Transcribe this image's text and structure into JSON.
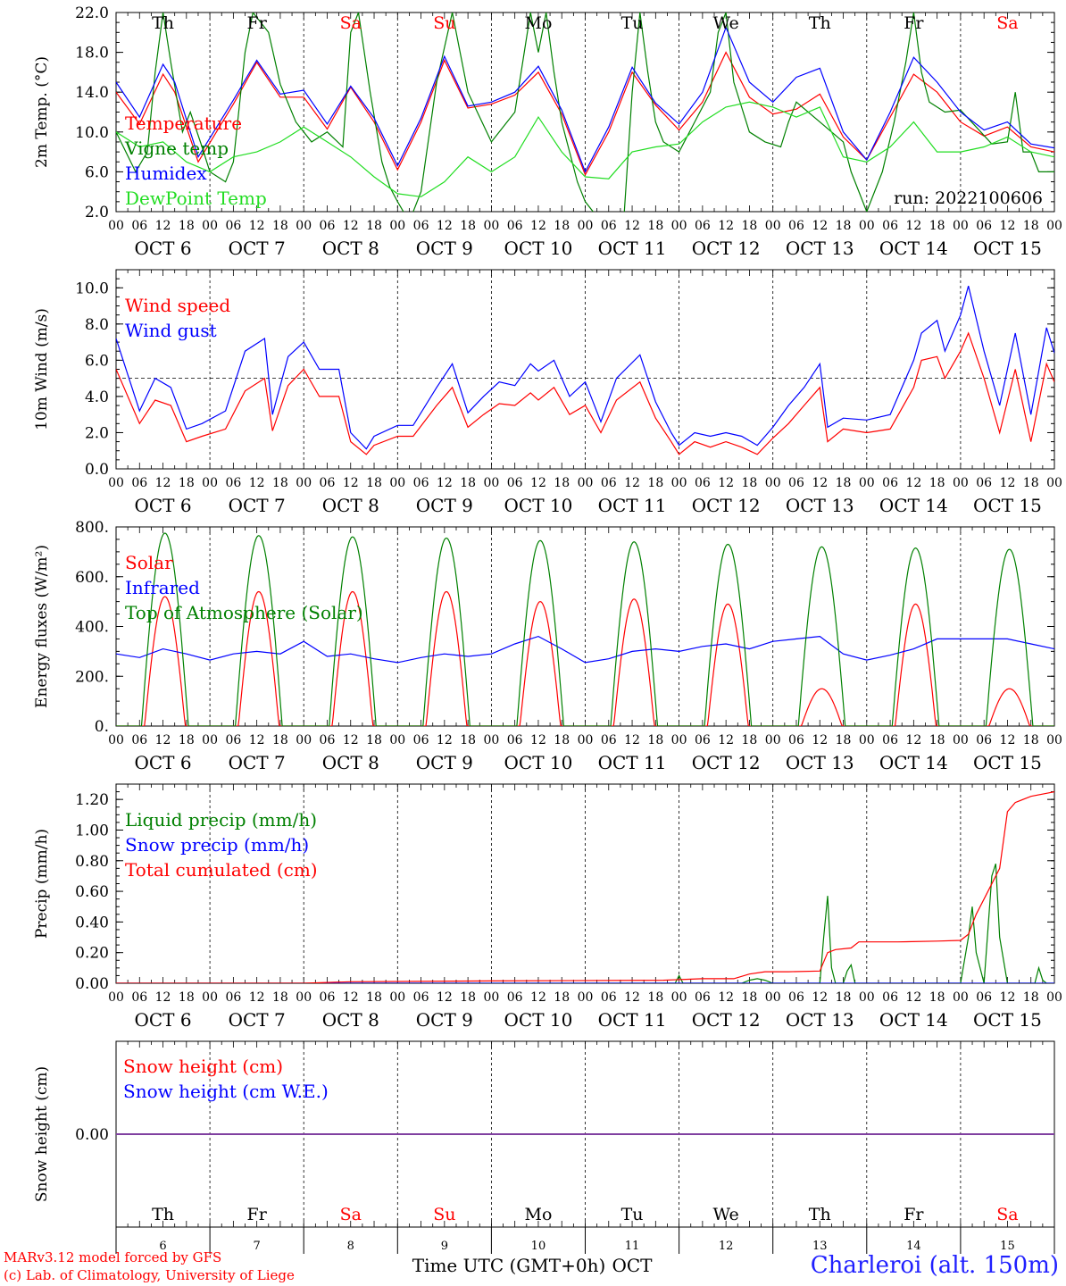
{
  "days": [
    "OCT  6",
    "OCT  7",
    "OCT  8",
    "OCT  9",
    "OCT 10",
    "OCT 11",
    "OCT 12",
    "OCT 13",
    "OCT 14",
    "OCT 15"
  ],
  "day_numbers": [
    "6",
    "7",
    "8",
    "9",
    "10",
    "11",
    "12",
    "13",
    "14",
    "15"
  ],
  "weekdays": [
    "Th",
    "Fr",
    "Sa",
    "Su",
    "Mo",
    "Tu",
    "We",
    "Th",
    "Fr",
    "Sa"
  ],
  "weekend": [
    false,
    false,
    true,
    true,
    false,
    false,
    false,
    false,
    false,
    true
  ],
  "hour_ticks": [
    "00",
    "06",
    "12",
    "18"
  ],
  "final_tick": "00",
  "colors": {
    "red": "#ff0000",
    "green": "#008000",
    "blue": "#0000ff",
    "lightgreen": "#22dd22",
    "purple": "#8040a0"
  },
  "footer": {
    "model": "MARv3.12 model forced by GFS",
    "lab": "(c) Lab. of Climatology, University of Liege",
    "xlabel": "Time UTC (GMT+0h)",
    "month": "OCT",
    "station": "Charleroi (alt. 150m)"
  },
  "chart_data": [
    {
      "type": "line",
      "ylabel": "2m Temp. (°C)",
      "ylim": [
        2,
        22
      ],
      "yticks": [
        "22.0",
        "18.0",
        "14.0",
        "10.0",
        "6.0",
        "2.0"
      ],
      "run_label": "run: 2022100606",
      "x_unit": "hours since 2022-10-06 00 UTC",
      "series": [
        {
          "name": "Temperature",
          "color": "red",
          "x": [
            0,
            6,
            12,
            15,
            21,
            30,
            36,
            42,
            48,
            54,
            60,
            66,
            72,
            78,
            84,
            90,
            96,
            102,
            108,
            114,
            120,
            126,
            132,
            138,
            144,
            150,
            156,
            162,
            168,
            174,
            180,
            186,
            192,
            198,
            204,
            210,
            216,
            222,
            228,
            234,
            240
          ],
          "y": [
            14,
            10.8,
            15.8,
            14,
            7,
            12.8,
            17,
            13.5,
            13.5,
            10.3,
            14.5,
            11,
            6.2,
            11,
            17.2,
            12.4,
            12.8,
            13.7,
            16,
            11.8,
            5.7,
            10,
            16,
            12.7,
            10.2,
            13,
            18,
            13.5,
            11.8,
            12.3,
            13.8,
            9.5,
            7.2,
            11.5,
            15.8,
            14,
            11,
            9.6,
            10.5,
            8.5,
            8
          ]
        },
        {
          "name": "Vigne temp",
          "color": "green",
          "x": [
            0,
            5,
            8,
            10,
            12,
            14,
            17,
            19,
            22,
            24,
            28,
            30,
            33,
            35,
            39,
            42,
            46,
            50,
            54,
            58,
            60,
            62,
            65,
            68,
            70,
            72,
            75,
            78,
            82,
            86,
            90,
            96,
            102,
            106,
            108,
            110,
            112,
            114,
            118,
            120,
            125,
            130,
            132,
            134,
            136,
            138,
            140,
            144,
            148,
            152,
            154,
            156,
            158,
            162,
            166,
            170,
            172,
            174,
            180,
            186,
            188,
            192,
            196,
            199,
            202,
            204,
            206,
            208,
            212,
            216,
            220,
            224,
            228,
            230,
            232,
            234,
            236,
            240
          ],
          "y": [
            10,
            6,
            8,
            16,
            22,
            17,
            10,
            12,
            8.5,
            6,
            5,
            7,
            18,
            22,
            20,
            14.8,
            11,
            9,
            10,
            8.5,
            20,
            22,
            14,
            7,
            4.5,
            3,
            1,
            4,
            15,
            22,
            14,
            9,
            12,
            22,
            18,
            22,
            16,
            11,
            5,
            3,
            0.5,
            2,
            14,
            22,
            16,
            11,
            9,
            8,
            11,
            14,
            20,
            22,
            15,
            10,
            9,
            8.5,
            11,
            13,
            11,
            9,
            6,
            2,
            6,
            11,
            17,
            22,
            16,
            13,
            12,
            12.2,
            10.5,
            8.8,
            9,
            14,
            8,
            8,
            6,
            6
          ]
        },
        {
          "name": "Humidex",
          "color": "blue",
          "x": [
            0,
            6,
            12,
            15,
            21,
            30,
            36,
            42,
            48,
            54,
            60,
            66,
            72,
            78,
            84,
            90,
            96,
            102,
            108,
            114,
            120,
            126,
            132,
            138,
            144,
            150,
            156,
            162,
            168,
            174,
            180,
            186,
            192,
            198,
            204,
            210,
            216,
            222,
            228,
            234,
            240
          ],
          "y": [
            15,
            11.5,
            16.8,
            15,
            7.5,
            13.2,
            17.2,
            13.8,
            14.2,
            10.8,
            14.6,
            11.4,
            6.6,
            11.4,
            17.6,
            12.6,
            13,
            14,
            16.6,
            12.2,
            6,
            10.5,
            16.5,
            12.9,
            10.8,
            14,
            20.5,
            15,
            13,
            15.5,
            16.4,
            10,
            7.2,
            12,
            17.5,
            15,
            12,
            10.2,
            11,
            8.8,
            8.4
          ]
        },
        {
          "name": "DewPoint Temp",
          "color": "lightgreen",
          "x": [
            0,
            6,
            12,
            18,
            24,
            30,
            36,
            42,
            48,
            54,
            60,
            66,
            72,
            78,
            84,
            90,
            96,
            102,
            108,
            114,
            120,
            126,
            132,
            138,
            144,
            150,
            156,
            162,
            168,
            174,
            180,
            186,
            192,
            198,
            204,
            210,
            216,
            222,
            228,
            234,
            240
          ],
          "y": [
            10,
            8.5,
            9,
            7,
            6,
            7.5,
            8,
            9,
            10.5,
            9,
            7.5,
            5.5,
            3.8,
            3.5,
            5,
            7.5,
            6,
            7.5,
            11.5,
            8,
            5.5,
            5.3,
            8,
            8.5,
            8.8,
            11,
            12.5,
            13,
            12.5,
            11.5,
            12.5,
            7.5,
            7,
            8.5,
            11,
            8,
            8,
            8.5,
            9.5,
            8,
            7.5
          ]
        }
      ]
    },
    {
      "type": "line",
      "ylabel": "10m Wind (m/s)",
      "ylim": [
        0,
        11
      ],
      "yticks": [
        "10.0",
        "8.0",
        "6.0",
        "4.0",
        "2.0",
        "0.0"
      ],
      "ref_line": 5,
      "x_unit": "hours since 2022-10-06 00 UTC",
      "series": [
        {
          "name": "Wind speed",
          "color": "red",
          "x": [
            0,
            6,
            10,
            14,
            18,
            22,
            28,
            33,
            38,
            40,
            44,
            48,
            52,
            57,
            60,
            64,
            66,
            72,
            76,
            82,
            86,
            90,
            94,
            98,
            102,
            106,
            108,
            112,
            116,
            120,
            124,
            128,
            134,
            138,
            142,
            144,
            148,
            152,
            156,
            160,
            164,
            168,
            172,
            176,
            180,
            182,
            186,
            192,
            198,
            204,
            206,
            210,
            212,
            216,
            218,
            222,
            226,
            230,
            234,
            238,
            240
          ],
          "y": [
            5.5,
            2.5,
            3.8,
            3.5,
            1.5,
            1.8,
            2.2,
            4.3,
            5,
            2.1,
            4.6,
            5.5,
            4,
            4,
            1.5,
            0.8,
            1.3,
            1.8,
            1.8,
            3.5,
            4.5,
            2.3,
            3,
            3.6,
            3.5,
            4.2,
            3.8,
            4.5,
            3,
            3.5,
            2,
            3.8,
            4.8,
            2.8,
            1.5,
            0.8,
            1.5,
            1.2,
            1.5,
            1.2,
            0.8,
            1.7,
            2.5,
            3.5,
            4.5,
            1.5,
            2.2,
            2,
            2.2,
            4.5,
            6,
            6.2,
            5,
            6.5,
            7.5,
            5,
            2,
            5.5,
            1.5,
            5.8,
            4.8
          ]
        },
        {
          "name": "Wind gust",
          "color": "blue",
          "x": [
            0,
            6,
            10,
            14,
            18,
            22,
            28,
            33,
            38,
            40,
            44,
            48,
            52,
            57,
            60,
            64,
            66,
            72,
            76,
            82,
            86,
            90,
            94,
            98,
            102,
            106,
            108,
            112,
            116,
            120,
            124,
            128,
            134,
            138,
            142,
            144,
            148,
            152,
            156,
            160,
            164,
            168,
            172,
            176,
            180,
            182,
            186,
            192,
            198,
            204,
            206,
            210,
            212,
            216,
            218,
            222,
            226,
            230,
            234,
            238,
            240
          ],
          "y": [
            7.2,
            3.2,
            5,
            4.5,
            2.2,
            2.5,
            3.2,
            6.5,
            7.2,
            3,
            6.2,
            7,
            5.5,
            5.5,
            2,
            1.1,
            1.8,
            2.4,
            2.4,
            4.5,
            5.8,
            3.1,
            4,
            4.8,
            4.6,
            5.8,
            5.4,
            6,
            4,
            4.8,
            2.6,
            5,
            6.3,
            3.7,
            2,
            1.3,
            2,
            1.8,
            2,
            1.8,
            1.3,
            2.3,
            3.5,
            4.5,
            5.8,
            2.3,
            2.8,
            2.7,
            3,
            6,
            7.5,
            8.2,
            6.5,
            8.5,
            10.1,
            6.5,
            3.5,
            7.5,
            3,
            7.8,
            6.4
          ]
        }
      ]
    },
    {
      "type": "line",
      "ylabel": "Energy fluxes (W/m²)",
      "ylim": [
        0,
        800
      ],
      "yticks": [
        "800.",
        "600.",
        "400.",
        "200.",
        "0."
      ],
      "x_unit": "hours since 2022-10-06 00 UTC",
      "solar_peaks": [
        520,
        540,
        540,
        540,
        500,
        510,
        490,
        150,
        490,
        150
      ],
      "toa_peaks": [
        775,
        765,
        760,
        755,
        745,
        740,
        730,
        720,
        715,
        710
      ],
      "series": [
        {
          "name": "Solar",
          "color": "red"
        },
        {
          "name": "Infrared",
          "color": "blue",
          "x": [
            0,
            6,
            12,
            18,
            24,
            30,
            36,
            42,
            48,
            54,
            60,
            66,
            72,
            78,
            84,
            90,
            96,
            102,
            108,
            114,
            120,
            126,
            132,
            138,
            144,
            150,
            156,
            162,
            168,
            174,
            180,
            186,
            192,
            198,
            204,
            210,
            216,
            222,
            228,
            234,
            240
          ],
          "y": [
            290,
            275,
            310,
            290,
            265,
            290,
            300,
            290,
            340,
            280,
            290,
            270,
            255,
            275,
            290,
            280,
            290,
            330,
            360,
            310,
            255,
            270,
            300,
            310,
            300,
            320,
            330,
            310,
            340,
            350,
            360,
            290,
            265,
            285,
            310,
            350,
            350,
            350,
            350,
            330,
            310
          ]
        },
        {
          "name": "Top of Atmosphere (Solar)",
          "color": "green"
        }
      ]
    },
    {
      "type": "line",
      "ylabel": "Precip (mm/h)",
      "ylim": [
        0,
        1.3
      ],
      "yticks": [
        "1.20",
        "1.00",
        "0.80",
        "0.60",
        "0.40",
        "0.20",
        "0.00"
      ],
      "x_unit": "hours since 2022-10-06 00 UTC",
      "series": [
        {
          "name": "Liquid precip (mm/h)",
          "color": "green",
          "x": [
            0,
            143,
            144,
            145,
            160,
            162,
            164,
            166,
            168,
            180,
            181,
            182,
            183,
            184,
            186,
            187,
            188,
            189,
            190,
            200,
            216,
            218,
            219,
            220,
            222,
            224,
            225,
            226,
            228,
            232,
            235,
            236,
            237,
            238,
            240
          ],
          "y": [
            0,
            0,
            0.05,
            0,
            0,
            0.02,
            0.03,
            0.02,
            0,
            0,
            0.3,
            0.57,
            0.1,
            0,
            0,
            0.08,
            0.12,
            0,
            0,
            0,
            0,
            0.3,
            0.5,
            0.2,
            0,
            0.7,
            0.78,
            0.3,
            0,
            0,
            0,
            0.1,
            0.02,
            0,
            0
          ]
        },
        {
          "name": "Snow precip (mm/h)",
          "color": "blue",
          "x": [
            0,
            240
          ],
          "y": [
            0,
            0
          ]
        },
        {
          "name": "Total cumulated (cm)",
          "color": "red",
          "x": [
            0,
            48,
            60,
            96,
            140,
            150,
            158,
            162,
            166,
            172,
            180,
            182,
            184,
            188,
            190,
            200,
            210,
            216,
            218,
            220,
            222,
            226,
            228,
            230,
            234,
            238,
            240
          ],
          "y": [
            0,
            0,
            0.01,
            0.015,
            0.02,
            0.03,
            0.03,
            0.06,
            0.075,
            0.075,
            0.08,
            0.2,
            0.22,
            0.23,
            0.27,
            0.27,
            0.275,
            0.28,
            0.32,
            0.45,
            0.55,
            0.75,
            1.12,
            1.18,
            1.22,
            1.24,
            1.25
          ]
        }
      ]
    },
    {
      "type": "line",
      "ylabel": "Snow height (cm)",
      "ylim": [
        -1,
        1
      ],
      "yticks": [
        "0.00"
      ],
      "x_unit": "hours since 2022-10-06 00 UTC",
      "series": [
        {
          "name": "Snow height (cm)",
          "color": "red",
          "x": [
            0,
            240
          ],
          "y": [
            0,
            0
          ]
        },
        {
          "name": "Snow height (cm W.E.)",
          "color": "blue",
          "x": [
            0,
            240
          ],
          "y": [
            0,
            0
          ]
        }
      ]
    }
  ]
}
